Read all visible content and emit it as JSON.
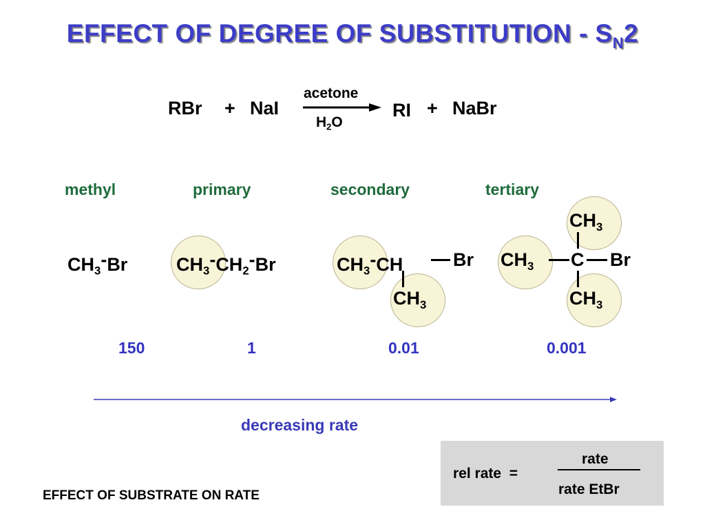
{
  "title": {
    "main": "EFFECT OF DEGREE OF SUBSTITUTION  -  S",
    "sub": "N",
    "tail": "2"
  },
  "reaction": {
    "reactant1": "RBr",
    "plus1": "+",
    "reactant2": "NaI",
    "solvent": "acetone",
    "cond_h": "H",
    "cond_sub": "2",
    "cond_o": "O",
    "product1": "RI",
    "plus2": "+",
    "product2": "NaBr"
  },
  "categories": [
    "methyl",
    "primary",
    "secondary",
    "tertiary"
  ],
  "structures": {
    "methyl": {
      "ch": "CH",
      "sub": "3",
      "dash": "-",
      "br": "Br"
    },
    "primary": {
      "ch3": "CH",
      "ch3_sub": "3",
      "dash1": "-",
      "ch2": "CH",
      "ch2_sub": "2",
      "dash2": "-",
      "br": "Br"
    },
    "secondary": {
      "ch3": "CH",
      "ch3_sub": "3",
      "dash": "-",
      "ch": "CH",
      "br": "Br",
      "bottom": "CH",
      "bottom_sub": "3"
    },
    "tertiary": {
      "ch3_left": "CH",
      "ch3_left_sub": "3",
      "c": "C",
      "br": "Br",
      "top": "CH",
      "top_sub": "3",
      "bottom": "CH",
      "bottom_sub": "3"
    }
  },
  "rates": [
    "150",
    "1",
    "0.01",
    "0.001"
  ],
  "decreasing_label": "decreasing rate",
  "colors": {
    "title": "#3c3cc8",
    "category": "#1f6b3c",
    "rate": "#3333c0",
    "circle": "#f8f4d8",
    "box": "#d8d8d8"
  },
  "formula": {
    "lhs": "rel rate",
    "eq": "=",
    "numerator": "rate",
    "denominator": "rate EtBr"
  },
  "footer": "EFFECT OF SUBSTRATE ON RATE"
}
